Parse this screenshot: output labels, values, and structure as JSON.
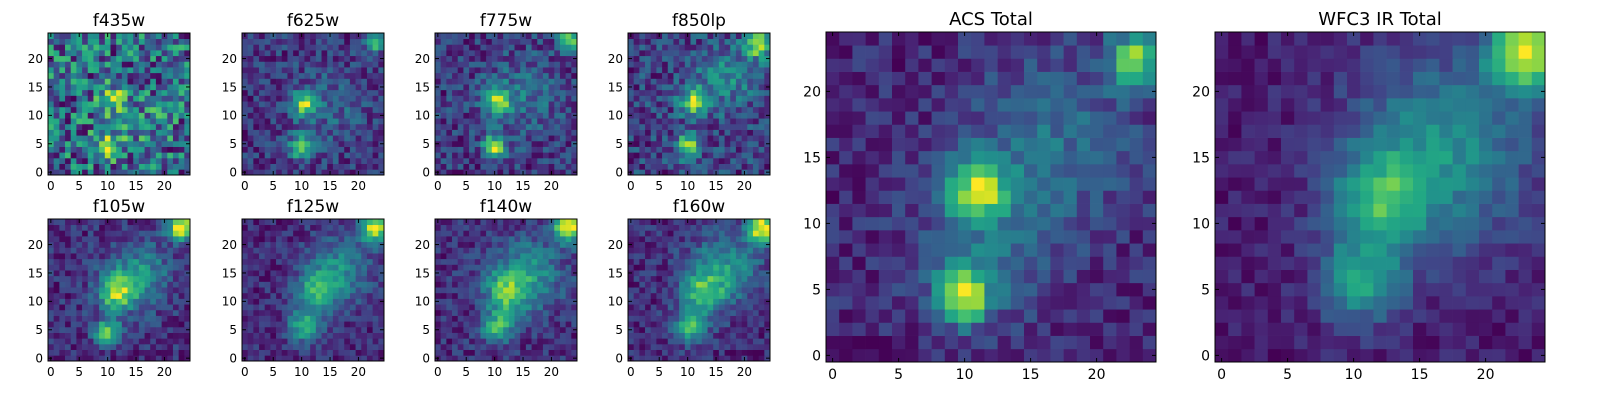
{
  "figure": {
    "description": "10 heatmap panels of a galaxy cutout in individual HST filters plus summed ACS and WFC3 IR stacks",
    "colormap": "viridis"
  },
  "chart_data": [
    {
      "type": "heatmap",
      "title": "f435w",
      "xlim": [
        0,
        25
      ],
      "ylim": [
        0,
        25
      ],
      "xticks": [
        "0",
        "5",
        "10",
        "15",
        "20"
      ],
      "yticks": [
        "0",
        "5",
        "10",
        "15",
        "20"
      ],
      "grid": false,
      "noise": 0.9,
      "seed": 11,
      "sources": [
        {
          "x": 10.5,
          "y": 5.5,
          "amp": 0.55,
          "sigma": 1.6
        },
        {
          "x": 11.5,
          "y": 13.5,
          "amp": 0.45,
          "sigma": 1.6
        },
        {
          "x": 15,
          "y": 10,
          "amp": 0.15,
          "sigma": 4
        }
      ],
      "base": 0.5
    },
    {
      "type": "heatmap",
      "title": "f625w",
      "xlim": [
        0,
        25
      ],
      "ylim": [
        0,
        25
      ],
      "xticks": [
        "0",
        "5",
        "10",
        "15",
        "20"
      ],
      "yticks": [
        "0",
        "5",
        "10",
        "15",
        "20"
      ],
      "grid": false,
      "noise": 0.45,
      "seed": 23,
      "sources": [
        {
          "x": 10.5,
          "y": 5,
          "amp": 0.9,
          "sigma": 1.4
        },
        {
          "x": 11,
          "y": 12.5,
          "amp": 0.85,
          "sigma": 1.5
        },
        {
          "x": 23.5,
          "y": 23.5,
          "amp": 0.8,
          "sigma": 1.2
        },
        {
          "x": 15,
          "y": 12,
          "amp": 0.2,
          "sigma": 5
        }
      ],
      "base": 0.35
    },
    {
      "type": "heatmap",
      "title": "f775w",
      "xlim": [
        0,
        25
      ],
      "ylim": [
        0,
        25
      ],
      "xticks": [
        "0",
        "5",
        "10",
        "15",
        "20"
      ],
      "yticks": [
        "0",
        "5",
        "10",
        "15",
        "20"
      ],
      "grid": false,
      "noise": 0.45,
      "seed": 37,
      "sources": [
        {
          "x": 10.5,
          "y": 5,
          "amp": 0.9,
          "sigma": 1.4
        },
        {
          "x": 11,
          "y": 13,
          "amp": 0.8,
          "sigma": 1.5
        },
        {
          "x": 23.5,
          "y": 23.5,
          "amp": 0.85,
          "sigma": 1.2
        },
        {
          "x": 15,
          "y": 14,
          "amp": 0.25,
          "sigma": 5
        }
      ],
      "base": 0.35
    },
    {
      "type": "heatmap",
      "title": "f850lp",
      "xlim": [
        0,
        25
      ],
      "ylim": [
        0,
        25
      ],
      "xticks": [
        "0",
        "5",
        "10",
        "15",
        "20"
      ],
      "yticks": [
        "0",
        "5",
        "10",
        "15",
        "20"
      ],
      "grid": false,
      "noise": 0.5,
      "seed": 41,
      "sources": [
        {
          "x": 10.5,
          "y": 5,
          "amp": 0.85,
          "sigma": 1.5
        },
        {
          "x": 11.5,
          "y": 13,
          "amp": 0.8,
          "sigma": 1.7
        },
        {
          "x": 23,
          "y": 23,
          "amp": 0.9,
          "sigma": 1.6
        },
        {
          "x": 17,
          "y": 17,
          "amp": 0.35,
          "sigma": 4
        }
      ],
      "base": 0.35
    },
    {
      "type": "heatmap",
      "title": "f105w",
      "xlim": [
        0,
        25
      ],
      "ylim": [
        0,
        25
      ],
      "xticks": [
        "0",
        "5",
        "10",
        "15",
        "20"
      ],
      "yticks": [
        "0",
        "5",
        "10",
        "15",
        "20"
      ],
      "grid": false,
      "noise": 0.3,
      "seed": 53,
      "sources": [
        {
          "x": 10.5,
          "y": 5,
          "amp": 0.7,
          "sigma": 1.6
        },
        {
          "x": 12,
          "y": 12,
          "amp": 0.65,
          "sigma": 2.2
        },
        {
          "x": 23.5,
          "y": 23.5,
          "amp": 1.0,
          "sigma": 1.6
        },
        {
          "x": 16,
          "y": 15,
          "amp": 0.4,
          "sigma": 4
        }
      ],
      "base": 0.3
    },
    {
      "type": "heatmap",
      "title": "f125w",
      "xlim": [
        0,
        25
      ],
      "ylim": [
        0,
        25
      ],
      "xticks": [
        "0",
        "5",
        "10",
        "15",
        "20"
      ],
      "yticks": [
        "0",
        "5",
        "10",
        "15",
        "20"
      ],
      "grid": false,
      "noise": 0.3,
      "seed": 61,
      "sources": [
        {
          "x": 11,
          "y": 6,
          "amp": 0.6,
          "sigma": 2
        },
        {
          "x": 13,
          "y": 12,
          "amp": 0.55,
          "sigma": 2.5
        },
        {
          "x": 23.5,
          "y": 23.5,
          "amp": 1.0,
          "sigma": 1.8
        },
        {
          "x": 17,
          "y": 16,
          "amp": 0.45,
          "sigma": 4
        }
      ],
      "base": 0.22
    },
    {
      "type": "heatmap",
      "title": "f140w",
      "xlim": [
        0,
        25
      ],
      "ylim": [
        0,
        25
      ],
      "xticks": [
        "0",
        "5",
        "10",
        "15",
        "20"
      ],
      "yticks": [
        "0",
        "5",
        "10",
        "15",
        "20"
      ],
      "grid": false,
      "noise": 0.3,
      "seed": 71,
      "sources": [
        {
          "x": 11,
          "y": 6,
          "amp": 0.55,
          "sigma": 2
        },
        {
          "x": 12.5,
          "y": 12,
          "amp": 0.5,
          "sigma": 2.5
        },
        {
          "x": 23.5,
          "y": 23.5,
          "amp": 0.95,
          "sigma": 1.8
        },
        {
          "x": 16,
          "y": 15,
          "amp": 0.45,
          "sigma": 4.5
        }
      ],
      "base": 0.3
    },
    {
      "type": "heatmap",
      "title": "f160w",
      "xlim": [
        0,
        25
      ],
      "ylim": [
        0,
        25
      ],
      "xticks": [
        "0",
        "5",
        "10",
        "15",
        "20"
      ],
      "yticks": [
        "0",
        "5",
        "10",
        "15",
        "20"
      ],
      "grid": false,
      "noise": 0.3,
      "seed": 83,
      "sources": [
        {
          "x": 11,
          "y": 6,
          "amp": 0.6,
          "sigma": 2
        },
        {
          "x": 13,
          "y": 12,
          "amp": 0.55,
          "sigma": 2.5
        },
        {
          "x": 23.5,
          "y": 23.5,
          "amp": 1.0,
          "sigma": 1.8
        },
        {
          "x": 17,
          "y": 16,
          "amp": 0.45,
          "sigma": 4.5
        }
      ],
      "base": 0.22
    },
    {
      "type": "heatmap",
      "title": "ACS Total",
      "xlim": [
        0,
        25
      ],
      "ylim": [
        0,
        25
      ],
      "xticks": [
        "0",
        "5",
        "10",
        "15",
        "20"
      ],
      "yticks": [
        "0",
        "5",
        "10",
        "15",
        "20"
      ],
      "grid": false,
      "noise": 0.28,
      "seed": 97,
      "sources": [
        {
          "x": 10.5,
          "y": 5,
          "amp": 0.85,
          "sigma": 1.5
        },
        {
          "x": 11.5,
          "y": 13,
          "amp": 0.8,
          "sigma": 1.6
        },
        {
          "x": 23.5,
          "y": 23,
          "amp": 0.8,
          "sigma": 1.5
        },
        {
          "x": 17,
          "y": 17,
          "amp": 0.3,
          "sigma": 4.5
        },
        {
          "x": 12,
          "y": 9,
          "amp": 0.25,
          "sigma": 4
        }
      ],
      "base": 0.32
    },
    {
      "type": "heatmap",
      "title": "WFC3 IR Total",
      "xlim": [
        0,
        25
      ],
      "ylim": [
        0,
        25
      ],
      "xticks": [
        "0",
        "5",
        "10",
        "15",
        "20"
      ],
      "yticks": [
        "0",
        "5",
        "10",
        "15",
        "20"
      ],
      "grid": false,
      "noise": 0.2,
      "seed": 109,
      "sources": [
        {
          "x": 11,
          "y": 6,
          "amp": 0.55,
          "sigma": 2.2
        },
        {
          "x": 12.5,
          "y": 12,
          "amp": 0.55,
          "sigma": 2.6
        },
        {
          "x": 23.5,
          "y": 23.5,
          "amp": 1.0,
          "sigma": 2
        },
        {
          "x": 17,
          "y": 16,
          "amp": 0.5,
          "sigma": 5
        }
      ],
      "base": 0.22
    }
  ]
}
